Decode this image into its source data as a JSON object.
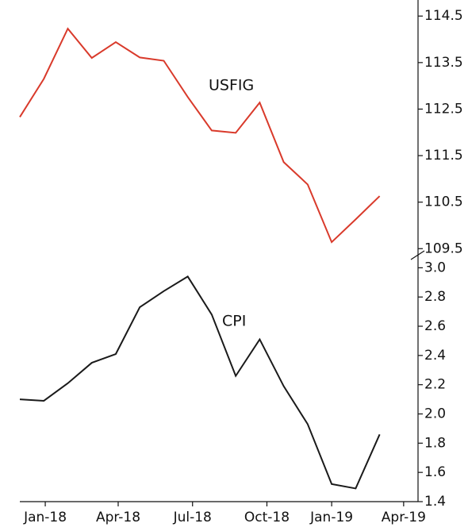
{
  "chart_data": [
    {
      "type": "line",
      "x": [
        0,
        1,
        2,
        3,
        4,
        5,
        6,
        7,
        8,
        9,
        10,
        11,
        12,
        13,
        14,
        15
      ],
      "xlim": [
        0,
        16.6
      ],
      "series": [
        {
          "name": "USFIG",
          "color": "#d93a2b",
          "values": [
            112.33,
            113.15,
            114.23,
            113.6,
            113.94,
            113.61,
            113.54,
            112.76,
            112.04,
            111.99,
            112.64,
            111.36,
            110.88,
            109.64,
            110.13,
            110.63
          ]
        }
      ],
      "ylim": [
        109.3,
        114.76
      ],
      "yticks": [
        114.5,
        113.5,
        112.5,
        111.5,
        110.5,
        109.5
      ]
    },
    {
      "type": "line",
      "x": [
        0,
        1,
        2,
        3,
        4,
        5,
        6,
        7,
        8,
        9,
        10,
        11,
        12,
        13,
        14,
        15
      ],
      "xlim": [
        0,
        16.6
      ],
      "series": [
        {
          "name": "CPI",
          "color": "#1a1a1a",
          "values": [
            2.1,
            2.09,
            2.21,
            2.35,
            2.41,
            2.73,
            2.84,
            2.94,
            2.68,
            2.26,
            2.51,
            2.19,
            1.93,
            1.52,
            1.49,
            1.86
          ]
        }
      ],
      "ylim": [
        1.4,
        3.04
      ],
      "yticks": [
        {
          "value": 3.0,
          "label": "3.0"
        },
        2.8,
        2.6,
        2.4,
        2.2,
        {
          "value": 2.0,
          "label": "2.0"
        },
        1.8,
        1.6,
        1.4
      ],
      "xticks": [
        {
          "value": 1.06,
          "label": "Jan-18"
        },
        {
          "value": 4.1,
          "label": "Apr-18"
        },
        {
          "value": 7.2,
          "label": "Jul-18"
        },
        {
          "value": 10.3,
          "label": "Oct-18"
        },
        {
          "value": 13.0,
          "label": "Jan-19"
        },
        {
          "value": 16.0,
          "label": "Apr-19"
        }
      ]
    }
  ]
}
